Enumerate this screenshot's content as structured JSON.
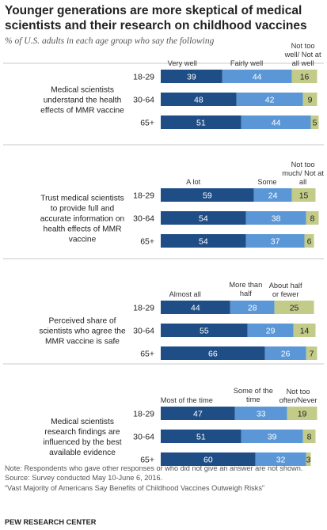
{
  "title": "Younger generations are more skeptical of medical scientists and their research on childhood vaccines",
  "subtitle": "% of U.S. adults in each age group who say the following",
  "colors": {
    "series1": "#1f4e87",
    "series2": "#5b97d6",
    "series3": "#c3cb89",
    "divider": "#c8c8c8"
  },
  "chart_data": {
    "type": "bar",
    "orientation": "horizontal",
    "stacked": true,
    "panels": [
      {
        "question": "Medical scientists understand the health effects of MMR vaccine",
        "series_labels": [
          "Very well",
          "Fairly well",
          "Not too well/ Not at all well"
        ],
        "categories": [
          "18-29",
          "30-64",
          "65+"
        ],
        "series": [
          {
            "name": "Very well",
            "values": [
              39,
              48,
              51
            ]
          },
          {
            "name": "Fairly well",
            "values": [
              44,
              42,
              44
            ]
          },
          {
            "name": "Not too well/ Not at all well",
            "values": [
              16,
              9,
              5
            ]
          }
        ]
      },
      {
        "question": "Trust medical scientists to provide full and accurate information on health effects of MMR vaccine",
        "series_labels": [
          "A lot",
          "Some",
          "Not too much/ Not at all"
        ],
        "categories": [
          "18-29",
          "30-64",
          "65+"
        ],
        "series": [
          {
            "name": "A lot",
            "values": [
              59,
              54,
              54
            ]
          },
          {
            "name": "Some",
            "values": [
              24,
              38,
              37
            ]
          },
          {
            "name": "Not too much/ Not at all",
            "values": [
              15,
              8,
              6
            ]
          }
        ]
      },
      {
        "question": "Perceived share of scientists who agree the MMR vaccine is safe",
        "series_labels": [
          "Almost all",
          "More than half",
          "About half or fewer"
        ],
        "categories": [
          "18-29",
          "30-64",
          "65+"
        ],
        "series": [
          {
            "name": "Almost all",
            "values": [
              44,
              55,
              66
            ]
          },
          {
            "name": "More than half",
            "values": [
              28,
              29,
              26
            ]
          },
          {
            "name": "About half or fewer",
            "values": [
              25,
              14,
              7
            ]
          }
        ]
      },
      {
        "question": "Medical scientists research findings are influenced by the best available evidence",
        "series_labels": [
          "Most of the time",
          "Some of the time",
          "Not too often/Never"
        ],
        "categories": [
          "18-29",
          "30-64",
          "65+"
        ],
        "series": [
          {
            "name": "Most of the time",
            "values": [
              47,
              51,
              60
            ]
          },
          {
            "name": "Some of the time",
            "values": [
              33,
              39,
              32
            ]
          },
          {
            "name": "Not too often/Never",
            "values": [
              19,
              8,
              3
            ]
          }
        ]
      }
    ]
  },
  "notes": {
    "note": "Note: Respondents who gave other responses or who did not give an answer are not shown.",
    "source": "Source: Survey conducted May 10-June 6, 2016.",
    "report": "“Vast Majority of Americans Say Benefits of Childhood Vaccines Outweigh Risks”",
    "org": "PEW RESEARCH CENTER"
  }
}
